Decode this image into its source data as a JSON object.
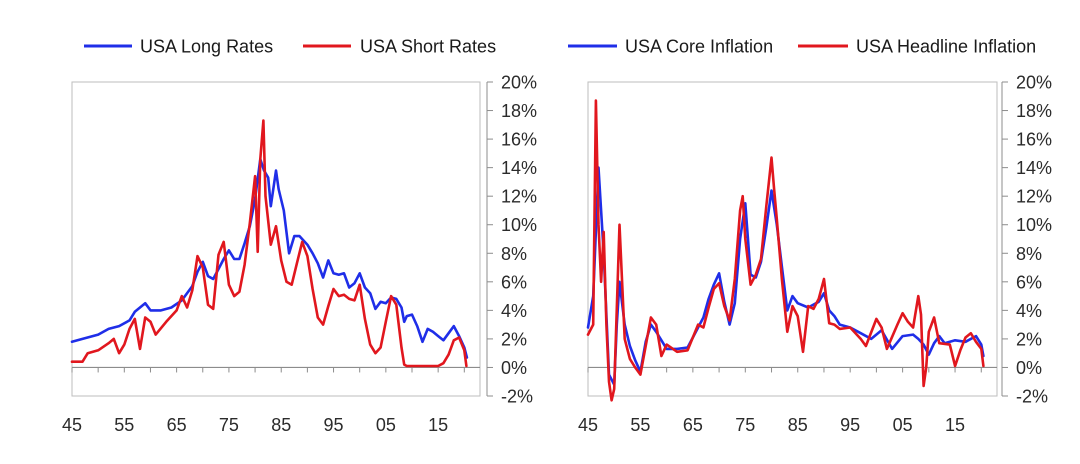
{
  "chart_data": [
    {
      "type": "line",
      "title": "",
      "xlabel": "",
      "ylabel": "",
      "x_ticks": [
        "45",
        "55",
        "65",
        "75",
        "85",
        "95",
        "05",
        "15"
      ],
      "x_tick_years": [
        1945,
        1955,
        1965,
        1975,
        1985,
        1995,
        2005,
        2015
      ],
      "xlim": [
        1945,
        2023
      ],
      "ylim": [
        -2,
        20
      ],
      "y_ticks": [
        "20%",
        "18%",
        "16%",
        "14%",
        "12%",
        "10%",
        "8%",
        "6%",
        "4%",
        "2%",
        "0%",
        "-2%"
      ],
      "y_tick_values": [
        20,
        18,
        16,
        14,
        12,
        10,
        8,
        6,
        4,
        2,
        0,
        -2
      ],
      "y_axis_side": "right",
      "legend_position": "top",
      "series": [
        {
          "name": "USA Long Rates",
          "color": "#1f2ee8",
          "x": [
            1945,
            1947,
            1950,
            1952,
            1954,
            1956,
            1957,
            1959,
            1960,
            1962,
            1964,
            1966,
            1968,
            1969,
            1970,
            1971,
            1972,
            1973,
            1974,
            1975,
            1976,
            1977,
            1978,
            1979,
            1980,
            1981,
            1981.7,
            1982.5,
            1983,
            1984,
            1984.5,
            1985.5,
            1986.5,
            1987.5,
            1988.5,
            1990,
            1991,
            1992,
            1993,
            1994,
            1995,
            1996,
            1997,
            1998,
            1999,
            2000,
            2001,
            2002,
            2003,
            2004,
            2005,
            2006,
            2007,
            2008,
            2008.5,
            2009,
            2010,
            2011,
            2012,
            2013,
            2014,
            2015,
            2016,
            2017,
            2018,
            2019,
            2020,
            2020.5
          ],
          "y": [
            1.8,
            2.0,
            2.3,
            2.7,
            2.9,
            3.3,
            3.9,
            4.5,
            4.0,
            4.0,
            4.2,
            4.7,
            5.7,
            6.7,
            7.4,
            6.4,
            6.2,
            6.9,
            7.6,
            8.2,
            7.6,
            7.6,
            8.7,
            9.9,
            11.8,
            14.6,
            13.8,
            13.3,
            11.3,
            13.8,
            12.5,
            11.0,
            8.0,
            9.2,
            9.2,
            8.6,
            8.0,
            7.3,
            6.3,
            7.5,
            6.6,
            6.5,
            6.6,
            5.6,
            5.9,
            6.6,
            5.6,
            5.2,
            4.1,
            4.6,
            4.5,
            4.9,
            4.8,
            4.2,
            3.2,
            3.6,
            3.7,
            2.9,
            1.8,
            2.7,
            2.5,
            2.2,
            1.9,
            2.4,
            2.9,
            2.2,
            1.4,
            0.7
          ]
        },
        {
          "name": "USA Short Rates",
          "color": "#e1171e",
          "x": [
            1945,
            1947,
            1948,
            1950,
            1952,
            1953,
            1954,
            1955,
            1956,
            1957,
            1958,
            1959,
            1960,
            1961,
            1963,
            1965,
            1966,
            1967,
            1968,
            1969,
            1970,
            1971,
            1972,
            1973,
            1974,
            1975,
            1976,
            1977,
            1978,
            1979,
            1980,
            1980.5,
            1981,
            1981.6,
            1982,
            1983,
            1984,
            1985,
            1986,
            1987,
            1988,
            1989,
            1990,
            1991,
            1992,
            1993,
            1994,
            1995,
            1996,
            1997,
            1998,
            1999,
            2000,
            2001,
            2002,
            2003,
            2004,
            2005,
            2006,
            2007,
            2008,
            2008.5,
            2009,
            2010,
            2015,
            2016,
            2017,
            2018,
            2019,
            2020,
            2020.4
          ],
          "y": [
            0.4,
            0.4,
            1.0,
            1.2,
            1.7,
            2.0,
            1.0,
            1.6,
            2.7,
            3.4,
            1.3,
            3.5,
            3.2,
            2.3,
            3.2,
            4.0,
            5.0,
            4.2,
            5.4,
            7.8,
            7.0,
            4.4,
            4.1,
            7.9,
            8.8,
            5.8,
            5.0,
            5.3,
            7.2,
            10.1,
            13.4,
            8.1,
            14.6,
            17.3,
            12.0,
            8.6,
            9.9,
            7.5,
            6.0,
            5.8,
            7.3,
            8.8,
            7.8,
            5.5,
            3.5,
            3.0,
            4.3,
            5.5,
            5.0,
            5.1,
            4.8,
            4.7,
            5.8,
            3.4,
            1.6,
            1.0,
            1.4,
            3.2,
            5.0,
            4.4,
            1.4,
            0.2,
            0.1,
            0.1,
            0.1,
            0.3,
            0.9,
            1.9,
            2.1,
            1.2,
            0.1
          ]
        }
      ]
    },
    {
      "type": "line",
      "title": "",
      "xlabel": "",
      "ylabel": "",
      "x_ticks": [
        "45",
        "55",
        "65",
        "75",
        "85",
        "95",
        "05",
        "15"
      ],
      "x_tick_years": [
        1945,
        1955,
        1965,
        1975,
        1985,
        1995,
        2005,
        2015
      ],
      "xlim": [
        1945,
        2023
      ],
      "ylim": [
        -2,
        20
      ],
      "y_ticks": [
        "20%",
        "18%",
        "16%",
        "14%",
        "12%",
        "10%",
        "8%",
        "6%",
        "4%",
        "2%",
        "0%",
        "-2%"
      ],
      "y_tick_values": [
        20,
        18,
        16,
        14,
        12,
        10,
        8,
        6,
        4,
        2,
        0,
        -2
      ],
      "y_axis_side": "right",
      "legend_position": "top",
      "series": [
        {
          "name": "USA Core Inflation",
          "color": "#1f2ee8",
          "x": [
            1945,
            1946,
            1947,
            1948,
            1949,
            1950,
            1950.5,
            1951,
            1952,
            1953,
            1954,
            1955,
            1956,
            1957,
            1958,
            1960,
            1962,
            1964,
            1966,
            1967,
            1968,
            1969,
            1970,
            1971,
            1972,
            1973,
            1974,
            1975,
            1976,
            1977,
            1978,
            1979,
            1980,
            1981,
            1982,
            1983,
            1984,
            1985,
            1987,
            1989,
            1990,
            1991,
            1992,
            1993,
            1995,
            1997,
            1999,
            2001,
            2003,
            2005,
            2007,
            2008,
            2009,
            2010,
            2011,
            2012,
            2013,
            2015,
            2017,
            2019,
            2020,
            2020.4
          ],
          "y": [
            2.8,
            5.0,
            14.0,
            8.0,
            -0.5,
            -1.2,
            3.0,
            6.0,
            3.0,
            1.5,
            0.5,
            -0.3,
            1.8,
            3.0,
            2.5,
            1.3,
            1.3,
            1.4,
            2.8,
            3.5,
            4.8,
            5.8,
            6.6,
            4.6,
            3.0,
            4.5,
            9.0,
            11.5,
            6.5,
            6.3,
            7.4,
            9.8,
            12.4,
            10.0,
            7.0,
            4.0,
            5.0,
            4.5,
            4.2,
            4.6,
            5.2,
            4.0,
            3.6,
            3.0,
            2.8,
            2.4,
            2.0,
            2.6,
            1.3,
            2.2,
            2.3,
            2.0,
            1.6,
            0.9,
            1.7,
            2.2,
            1.7,
            1.9,
            1.8,
            2.2,
            1.6,
            0.8
          ]
        },
        {
          "name": "USA Headline Inflation",
          "color": "#e1171e",
          "x": [
            1945,
            1946,
            1946.5,
            1947,
            1947.5,
            1948,
            1948.5,
            1949,
            1949.5,
            1950,
            1951,
            1951.5,
            1952,
            1953,
            1954,
            1955,
            1956,
            1957,
            1958,
            1959,
            1960,
            1962,
            1964,
            1966,
            1967,
            1968,
            1969,
            1970,
            1971,
            1972,
            1973,
            1974,
            1974.5,
            1975,
            1976,
            1977,
            1978,
            1979,
            1980,
            1980.5,
            1981,
            1982,
            1983,
            1984,
            1985,
            1986,
            1987,
            1988,
            1989,
            1990,
            1991,
            1992,
            1993,
            1995,
            1997,
            1998,
            2000,
            2001,
            2002,
            2004,
            2005,
            2006,
            2007,
            2008,
            2008.5,
            2009,
            2009.5,
            2010,
            2011,
            2012,
            2014,
            2015,
            2016,
            2017,
            2018,
            2019,
            2020,
            2020.4
          ],
          "y": [
            2.3,
            3.0,
            18.7,
            10.0,
            6.0,
            9.5,
            3.0,
            -1.0,
            -2.3,
            -1.5,
            10.0,
            6.0,
            2.0,
            0.6,
            0.0,
            -0.5,
            1.5,
            3.5,
            3.0,
            0.8,
            1.6,
            1.1,
            1.2,
            3.0,
            2.8,
            4.2,
            5.5,
            5.9,
            4.3,
            3.3,
            6.2,
            11.0,
            12.0,
            9.0,
            5.8,
            6.5,
            7.6,
            11.3,
            14.7,
            12.5,
            10.4,
            6.1,
            2.5,
            4.3,
            3.6,
            1.1,
            4.3,
            4.1,
            4.8,
            6.2,
            3.1,
            3.0,
            2.7,
            2.8,
            2.0,
            1.5,
            3.4,
            2.8,
            1.3,
            3.0,
            3.8,
            3.2,
            2.8,
            5.0,
            3.7,
            -1.3,
            0.0,
            2.5,
            3.5,
            1.7,
            1.6,
            0.1,
            1.2,
            2.1,
            2.4,
            1.8,
            1.3,
            0.1
          ]
        }
      ]
    }
  ]
}
